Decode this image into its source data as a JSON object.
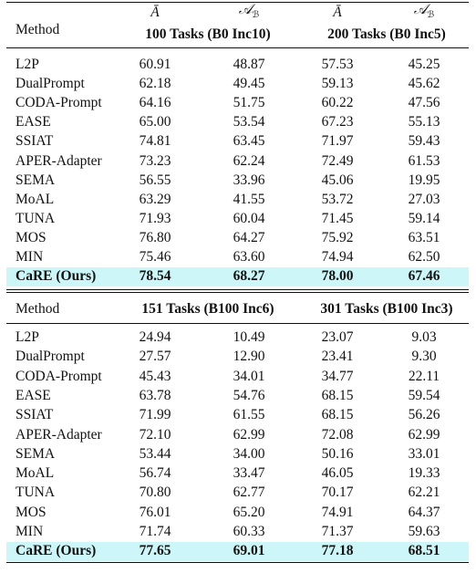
{
  "blocks": [
    {
      "header": {
        "method": "Method",
        "groups": [
          {
            "title": "100 Tasks (B0 Inc10)",
            "metrics": [
              {
                "symbol": "Ā"
              },
              {
                "symbol": "𝒜",
                "sub": "ℬ"
              }
            ]
          },
          {
            "title": "200 Tasks (B0 Inc5)",
            "metrics": [
              {
                "symbol": "Ā"
              },
              {
                "symbol": "𝒜",
                "sub": "ℬ"
              }
            ]
          }
        ]
      },
      "rows": [
        {
          "method": "L2P",
          "values": [
            "60.91",
            "48.87",
            "57.53",
            "45.25"
          ]
        },
        {
          "method": "DualPrompt",
          "values": [
            "62.18",
            "49.45",
            "59.13",
            "45.62"
          ]
        },
        {
          "method": "CODA-Prompt",
          "values": [
            "64.16",
            "51.75",
            "60.22",
            "47.56"
          ]
        },
        {
          "method": "EASE",
          "values": [
            "65.00",
            "53.54",
            "67.23",
            "55.13"
          ]
        },
        {
          "method": "SSIAT",
          "values": [
            "74.81",
            "63.45",
            "71.97",
            "59.43"
          ]
        },
        {
          "method": "APER-Adapter",
          "values": [
            "73.23",
            "62.24",
            "72.49",
            "61.53"
          ]
        },
        {
          "method": "SEMA",
          "values": [
            "56.55",
            "33.96",
            "45.06",
            "19.95"
          ]
        },
        {
          "method": "MoAL",
          "values": [
            "63.29",
            "41.55",
            "53.72",
            "27.03"
          ]
        },
        {
          "method": "TUNA",
          "values": [
            "71.93",
            "60.04",
            "71.45",
            "59.14"
          ]
        },
        {
          "method": "MOS",
          "values": [
            "76.80",
            "64.27",
            "75.92",
            "63.51"
          ]
        },
        {
          "method": "MIN",
          "values": [
            "75.46",
            "63.60",
            "74.94",
            "62.50"
          ]
        },
        {
          "method": "CaRE (Ours)",
          "values": [
            "78.54",
            "68.27",
            "78.00",
            "67.46"
          ]
        }
      ]
    },
    {
      "header": {
        "method": "Method",
        "groups": [
          {
            "title": "151 Tasks (B100 Inc6)"
          },
          {
            "title": "301 Tasks (B100 Inc3)"
          }
        ]
      },
      "rows": [
        {
          "method": "L2P",
          "values": [
            "24.94",
            "10.49",
            "23.07",
            "9.03"
          ]
        },
        {
          "method": "DualPrompt",
          "values": [
            "27.57",
            "12.90",
            "23.41",
            "9.30"
          ]
        },
        {
          "method": "CODA-Prompt",
          "values": [
            "45.43",
            "34.01",
            "34.77",
            "22.11"
          ]
        },
        {
          "method": "EASE",
          "values": [
            "63.78",
            "54.76",
            "68.15",
            "59.54"
          ]
        },
        {
          "method": "SSIAT",
          "values": [
            "71.99",
            "61.55",
            "68.15",
            "56.26"
          ]
        },
        {
          "method": "APER-Adapter",
          "values": [
            "72.10",
            "62.99",
            "72.08",
            "62.99"
          ]
        },
        {
          "method": "SEMA",
          "values": [
            "53.44",
            "34.00",
            "50.16",
            "33.01"
          ]
        },
        {
          "method": "MoAL",
          "values": [
            "56.74",
            "33.47",
            "46.05",
            "19.33"
          ]
        },
        {
          "method": "TUNA",
          "values": [
            "70.80",
            "62.77",
            "70.17",
            "62.21"
          ]
        },
        {
          "method": "MOS",
          "values": [
            "76.01",
            "65.20",
            "74.91",
            "64.37"
          ]
        },
        {
          "method": "MIN",
          "values": [
            "71.74",
            "60.33",
            "71.37",
            "59.63"
          ]
        },
        {
          "method": "CaRE (Ours)",
          "values": [
            "77.65",
            "69.01",
            "77.18",
            "68.51"
          ]
        }
      ]
    }
  ]
}
